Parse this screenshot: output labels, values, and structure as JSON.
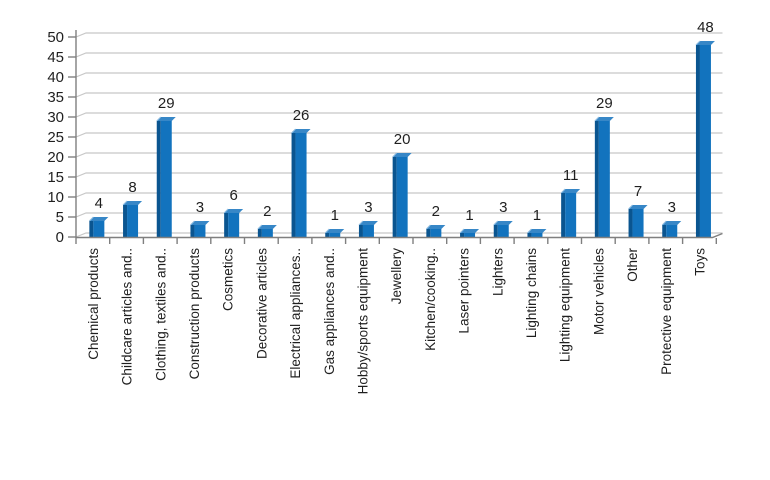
{
  "chart_data": {
    "type": "bar",
    "style": "3d-column",
    "title": "",
    "xlabel": "",
    "ylabel": "",
    "categories": [
      "Chemical products",
      "Childcare articles and..",
      "Clothing, textiles and..",
      "Construction products",
      "Cosmetics",
      "Decorative articles",
      "Electrical appliances..",
      "Gas appliances and..",
      "Hobby/sports equipment",
      "Jewellery",
      "Kitchen/cooking..",
      "Laser pointers",
      "Lighters",
      "Lighting chains",
      "Lighting equipment",
      "Motor vehicles",
      "Other",
      "Protective equipment",
      "Toys"
    ],
    "values": [
      4,
      8,
      29,
      3,
      6,
      2,
      26,
      1,
      3,
      20,
      2,
      1,
      3,
      1,
      11,
      29,
      7,
      3,
      48
    ],
    "data_labels": [
      4,
      8,
      29,
      3,
      6,
      2,
      26,
      1,
      3,
      20,
      2,
      1,
      3,
      1,
      11,
      29,
      7,
      3,
      48
    ],
    "ylim": [
      0,
      50
    ],
    "yticks": [
      0,
      5,
      10,
      15,
      20,
      25,
      30,
      35,
      40,
      45,
      50
    ],
    "grid": true,
    "legend": "none",
    "colors": {
      "bar_face": "#1273BE",
      "bar_left_edge": "#0A5590",
      "bar_top_cap": "#3787C7",
      "bar_cap_highlight": "#8FBCE0",
      "gridline": "#C8C8C8",
      "axis": "#7F7F7F",
      "text": "#1F1F1F",
      "background": "#FFFFFF"
    }
  }
}
